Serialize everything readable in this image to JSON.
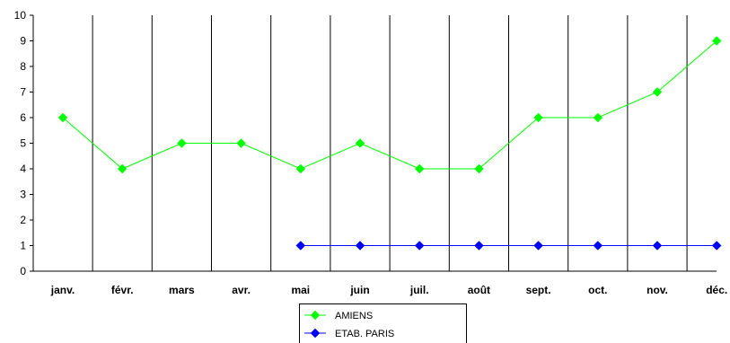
{
  "chart_data": {
    "type": "line",
    "title": "",
    "xlabel": "",
    "ylabel": "",
    "categories": [
      "janv.",
      "févr.",
      "mars",
      "avr.",
      "mai",
      "juin",
      "juil.",
      "août",
      "sept.",
      "oct.",
      "nov.",
      "déc."
    ],
    "ylim": [
      0,
      10
    ],
    "yticks": [
      "0",
      "1",
      "2",
      "3",
      "4",
      "5",
      "6",
      "7",
      "8",
      "9",
      "10"
    ],
    "grid": "vertical lines between categories",
    "legend_position": "bottom-center",
    "series": [
      {
        "name": "AMIENS",
        "color": "#00ff00",
        "marker": "diamond",
        "values": [
          6,
          4,
          5,
          5,
          4,
          5,
          4,
          4,
          6,
          6,
          7,
          9
        ]
      },
      {
        "name": "ETAB. PARIS",
        "color": "#0000ff",
        "marker": "diamond",
        "values": [
          null,
          null,
          null,
          null,
          1,
          1,
          1,
          1,
          1,
          1,
          1,
          1
        ]
      }
    ]
  }
}
